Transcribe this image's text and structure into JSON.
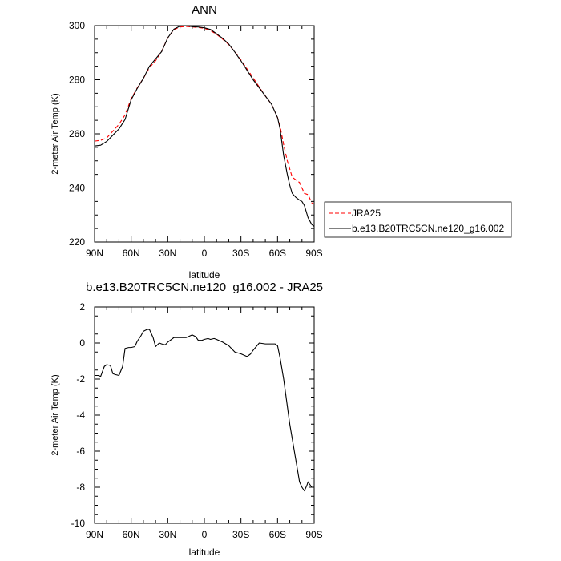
{
  "chart_data": [
    {
      "type": "line",
      "title": "ANN",
      "xlabel": "latitude",
      "ylabel": "2-meter Air Temp (K)",
      "xlim": [
        90,
        -90
      ],
      "ylim": [
        220,
        300
      ],
      "x_ticks": [
        90,
        60,
        30,
        0,
        -30,
        -60,
        -90
      ],
      "x_tick_labels": [
        "90N",
        "60N",
        "30N",
        "0",
        "30S",
        "60S",
        "90S"
      ],
      "y_ticks": [
        220,
        240,
        260,
        280,
        300
      ],
      "y_tick_labels": [
        "220",
        "240",
        "260",
        "280",
        "300"
      ],
      "legend_position": "right",
      "series": [
        {
          "name": "JRA25",
          "color": "#ff0000",
          "dash": "dashed",
          "x": [
            90,
            85,
            80,
            75,
            70,
            65,
            60,
            55,
            50,
            45,
            40,
            35,
            30,
            25,
            20,
            15,
            10,
            5,
            0,
            -5,
            -10,
            -15,
            -20,
            -25,
            -30,
            -35,
            -40,
            -45,
            -50,
            -55,
            -60,
            -62,
            -65,
            -68,
            -70,
            -72,
            -75,
            -78,
            -80,
            -82,
            -85,
            -88,
            -90
          ],
          "y": [
            257.3,
            257.6,
            258.5,
            261.0,
            263.5,
            267.0,
            273.0,
            277.0,
            280.5,
            284.5,
            287.0,
            290.5,
            295.5,
            298.5,
            299.5,
            299.7,
            299.5,
            299.3,
            299.0,
            298.2,
            296.8,
            295.0,
            293.0,
            290.3,
            287.3,
            284.0,
            280.7,
            277.3,
            274.0,
            271.0,
            266.0,
            263.0,
            256.0,
            250.0,
            247.0,
            244.0,
            243.0,
            242.0,
            240.0,
            238.0,
            237.5,
            234.5,
            234.0
          ]
        },
        {
          "name": "b.e13.B20TRC5CN.ne120_g16.002",
          "color": "#000000",
          "dash": "solid",
          "x": [
            90,
            85,
            80,
            75,
            70,
            65,
            60,
            55,
            50,
            45,
            40,
            35,
            30,
            25,
            20,
            15,
            10,
            5,
            0,
            -5,
            -10,
            -15,
            -20,
            -25,
            -30,
            -35,
            -40,
            -45,
            -50,
            -55,
            -60,
            -62,
            -65,
            -68,
            -70,
            -72,
            -75,
            -78,
            -80,
            -82,
            -85,
            -88,
            -90
          ],
          "y": [
            255.5,
            255.8,
            257.2,
            259.5,
            261.8,
            265.3,
            272.6,
            276.8,
            280.5,
            285.0,
            287.7,
            290.4,
            295.5,
            298.7,
            299.8,
            300.0,
            299.6,
            299.5,
            299.2,
            298.6,
            297.0,
            295.3,
            293.2,
            290.2,
            287.0,
            283.5,
            280.0,
            277.0,
            274.0,
            271.0,
            266.0,
            262.0,
            252.0,
            245.0,
            241.0,
            238.0,
            236.5,
            235.5,
            235.0,
            233.5,
            229.0,
            226.5,
            225.8
          ]
        }
      ]
    },
    {
      "type": "line",
      "title": "b.e13.B20TRC5CN.ne120_g16.002 - JRA25",
      "xlabel": "latitude",
      "ylabel": "2-meter Air Temp (K)",
      "xlim": [
        90,
        -90
      ],
      "ylim": [
        -10,
        2
      ],
      "x_ticks": [
        90,
        60,
        30,
        0,
        -30,
        -60,
        -90
      ],
      "x_tick_labels": [
        "90N",
        "60N",
        "30N",
        "0",
        "30S",
        "60S",
        "90S"
      ],
      "y_ticks": [
        -10,
        -8,
        -6,
        -4,
        -2,
        0,
        2
      ],
      "y_tick_labels": [
        "-10",
        "-8",
        "-6",
        "-4",
        "-2",
        "0",
        "2"
      ],
      "series": [
        {
          "color": "#000000",
          "dash": "solid",
          "x": [
            90,
            87,
            85,
            82,
            80,
            77,
            75,
            73,
            70,
            67,
            65,
            62,
            60,
            57,
            55,
            52,
            50,
            47,
            45,
            42,
            40,
            37,
            35,
            32,
            30,
            25,
            20,
            15,
            10,
            7,
            5,
            2,
            0,
            -3,
            -5,
            -8,
            -10,
            -15,
            -20,
            -25,
            -30,
            -35,
            -38,
            -40,
            -45,
            -50,
            -55,
            -58,
            -60,
            -62,
            -65,
            -68,
            -70,
            -72,
            -75,
            -78,
            -80,
            -82,
            -84,
            -85,
            -86,
            -88,
            -90
          ],
          "y": [
            -1.8,
            -1.8,
            -1.85,
            -1.3,
            -1.2,
            -1.25,
            -1.7,
            -1.75,
            -1.8,
            -1.3,
            -0.3,
            -0.25,
            -0.25,
            -0.2,
            0.1,
            0.4,
            0.65,
            0.75,
            0.75,
            0.3,
            -0.2,
            0.0,
            -0.05,
            -0.1,
            0.05,
            0.3,
            0.3,
            0.3,
            0.45,
            0.35,
            0.15,
            0.15,
            0.2,
            0.25,
            0.2,
            0.25,
            0.2,
            0.05,
            -0.15,
            -0.5,
            -0.6,
            -0.75,
            -0.6,
            -0.4,
            0.0,
            -0.05,
            -0.05,
            -0.05,
            -0.15,
            -0.8,
            -2.0,
            -3.5,
            -4.5,
            -5.3,
            -6.5,
            -7.7,
            -8.0,
            -8.2,
            -7.9,
            -7.7,
            -7.8,
            -8.0,
            -8.0
          ]
        }
      ]
    }
  ]
}
